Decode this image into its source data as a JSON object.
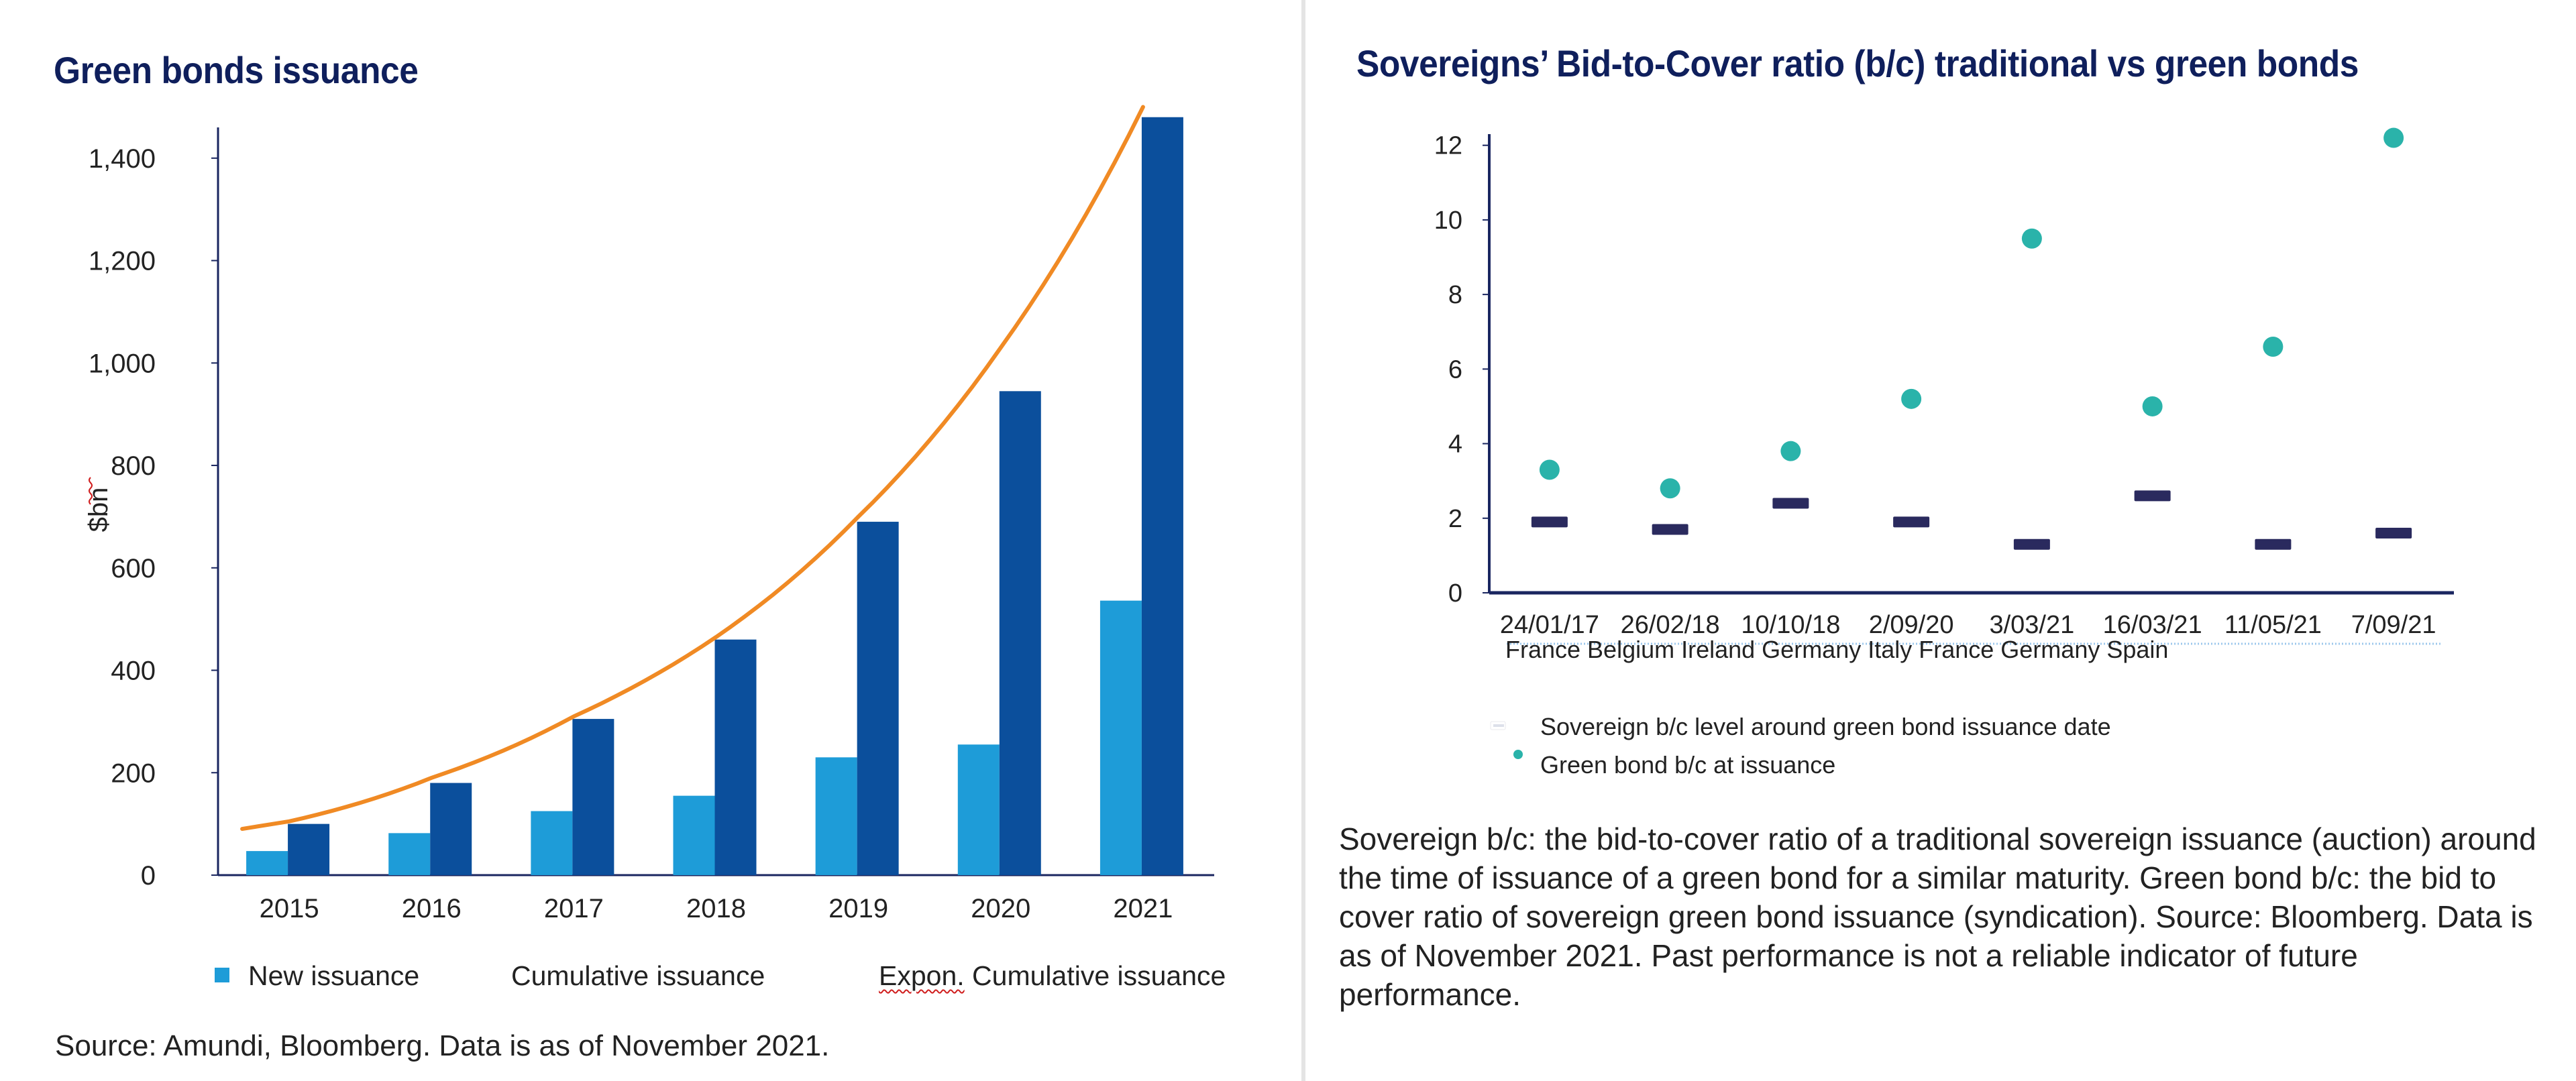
{
  "left": {
    "title": "Green bonds issuance",
    "source": "Source: Amundi, Bloomberg. Data is as of November 2021.",
    "legend": {
      "new": "New issuance",
      "cumulative": "Cumulative issuance",
      "expon_prefix": "Expon.",
      "expon_suffix": " Cumulative issuance"
    }
  },
  "right": {
    "title": "Sovereigns’ Bid-to-Cover ratio (b/c) traditional vs green bonds",
    "countries_line": "France Belgium Ireland Germany Italy France Germany Spain",
    "legend": {
      "sovereign": "Sovereign b/c level around green bond issuance date",
      "green": "Green bond b/c at issuance"
    },
    "note": "Sovereign b/c: the bid-to-cover ratio of a traditional sovereign issuance (auction) around the time of issuance of a green bond for a similar maturity. Green bond b/c: the bid to cover ratio of sovereign green bond issuance (syndication). Source: Bloomberg. Data is as of November 2021. Past performance is not a reliable indicator of future performance."
  },
  "colors": {
    "new_issuance": "#1e9cd8",
    "cumulative_issuance": "#0b4f9c",
    "trend": "#f08a24",
    "green_bc": "#2ab3aa",
    "sovereign_bc": "#2a2a5e",
    "axis": "#1a2660",
    "title": "#0f1f5c"
  },
  "chart_data": [
    {
      "type": "bar",
      "title": "Green bonds issuance",
      "ylabel": "$bn",
      "ylim": [
        0,
        1450
      ],
      "yticks": [
        0,
        200,
        400,
        600,
        800,
        1000,
        1200,
        1400
      ],
      "ytick_labels": [
        "0",
        "200",
        "400",
        "600",
        "800",
        "1,000",
        "1,200",
        "1,400"
      ],
      "categories": [
        "2015",
        "2016",
        "2017",
        "2018",
        "2019",
        "2020",
        "2021"
      ],
      "series": [
        {
          "name": "New issuance",
          "values": [
            47,
            82,
            125,
            155,
            230,
            255,
            536
          ]
        },
        {
          "name": "Cumulative issuance",
          "values": [
            100,
            180,
            305,
            460,
            690,
            945,
            1480
          ]
        }
      ],
      "trendline": {
        "name": "Expon. Cumulative issuance",
        "kind": "exponential",
        "values": [
          105,
          190,
          310,
          465,
          700,
          1030,
          1500
        ]
      },
      "legend_position": "bottom"
    },
    {
      "type": "scatter",
      "title": "Sovereigns’ Bid-to-Cover ratio (b/c) traditional vs green bonds",
      "ylim": [
        0,
        12
      ],
      "yticks": [
        0,
        2,
        4,
        6,
        8,
        10,
        12
      ],
      "categories": [
        "24/01/17",
        "26/02/18",
        "10/10/18",
        "2/09/20",
        "3/03/21",
        "16/03/21",
        "11/05/21",
        "7/09/21"
      ],
      "series": [
        {
          "name": "Sovereign b/c level around green bond issuance date",
          "values": [
            1.9,
            1.7,
            2.4,
            1.9,
            1.3,
            2.6,
            1.3,
            1.6
          ]
        },
        {
          "name": "Green bond b/c at issuance",
          "values": [
            3.3,
            2.8,
            3.8,
            5.2,
            9.5,
            5.0,
            6.6,
            12.2
          ]
        }
      ],
      "legend_position": "bottom"
    }
  ]
}
